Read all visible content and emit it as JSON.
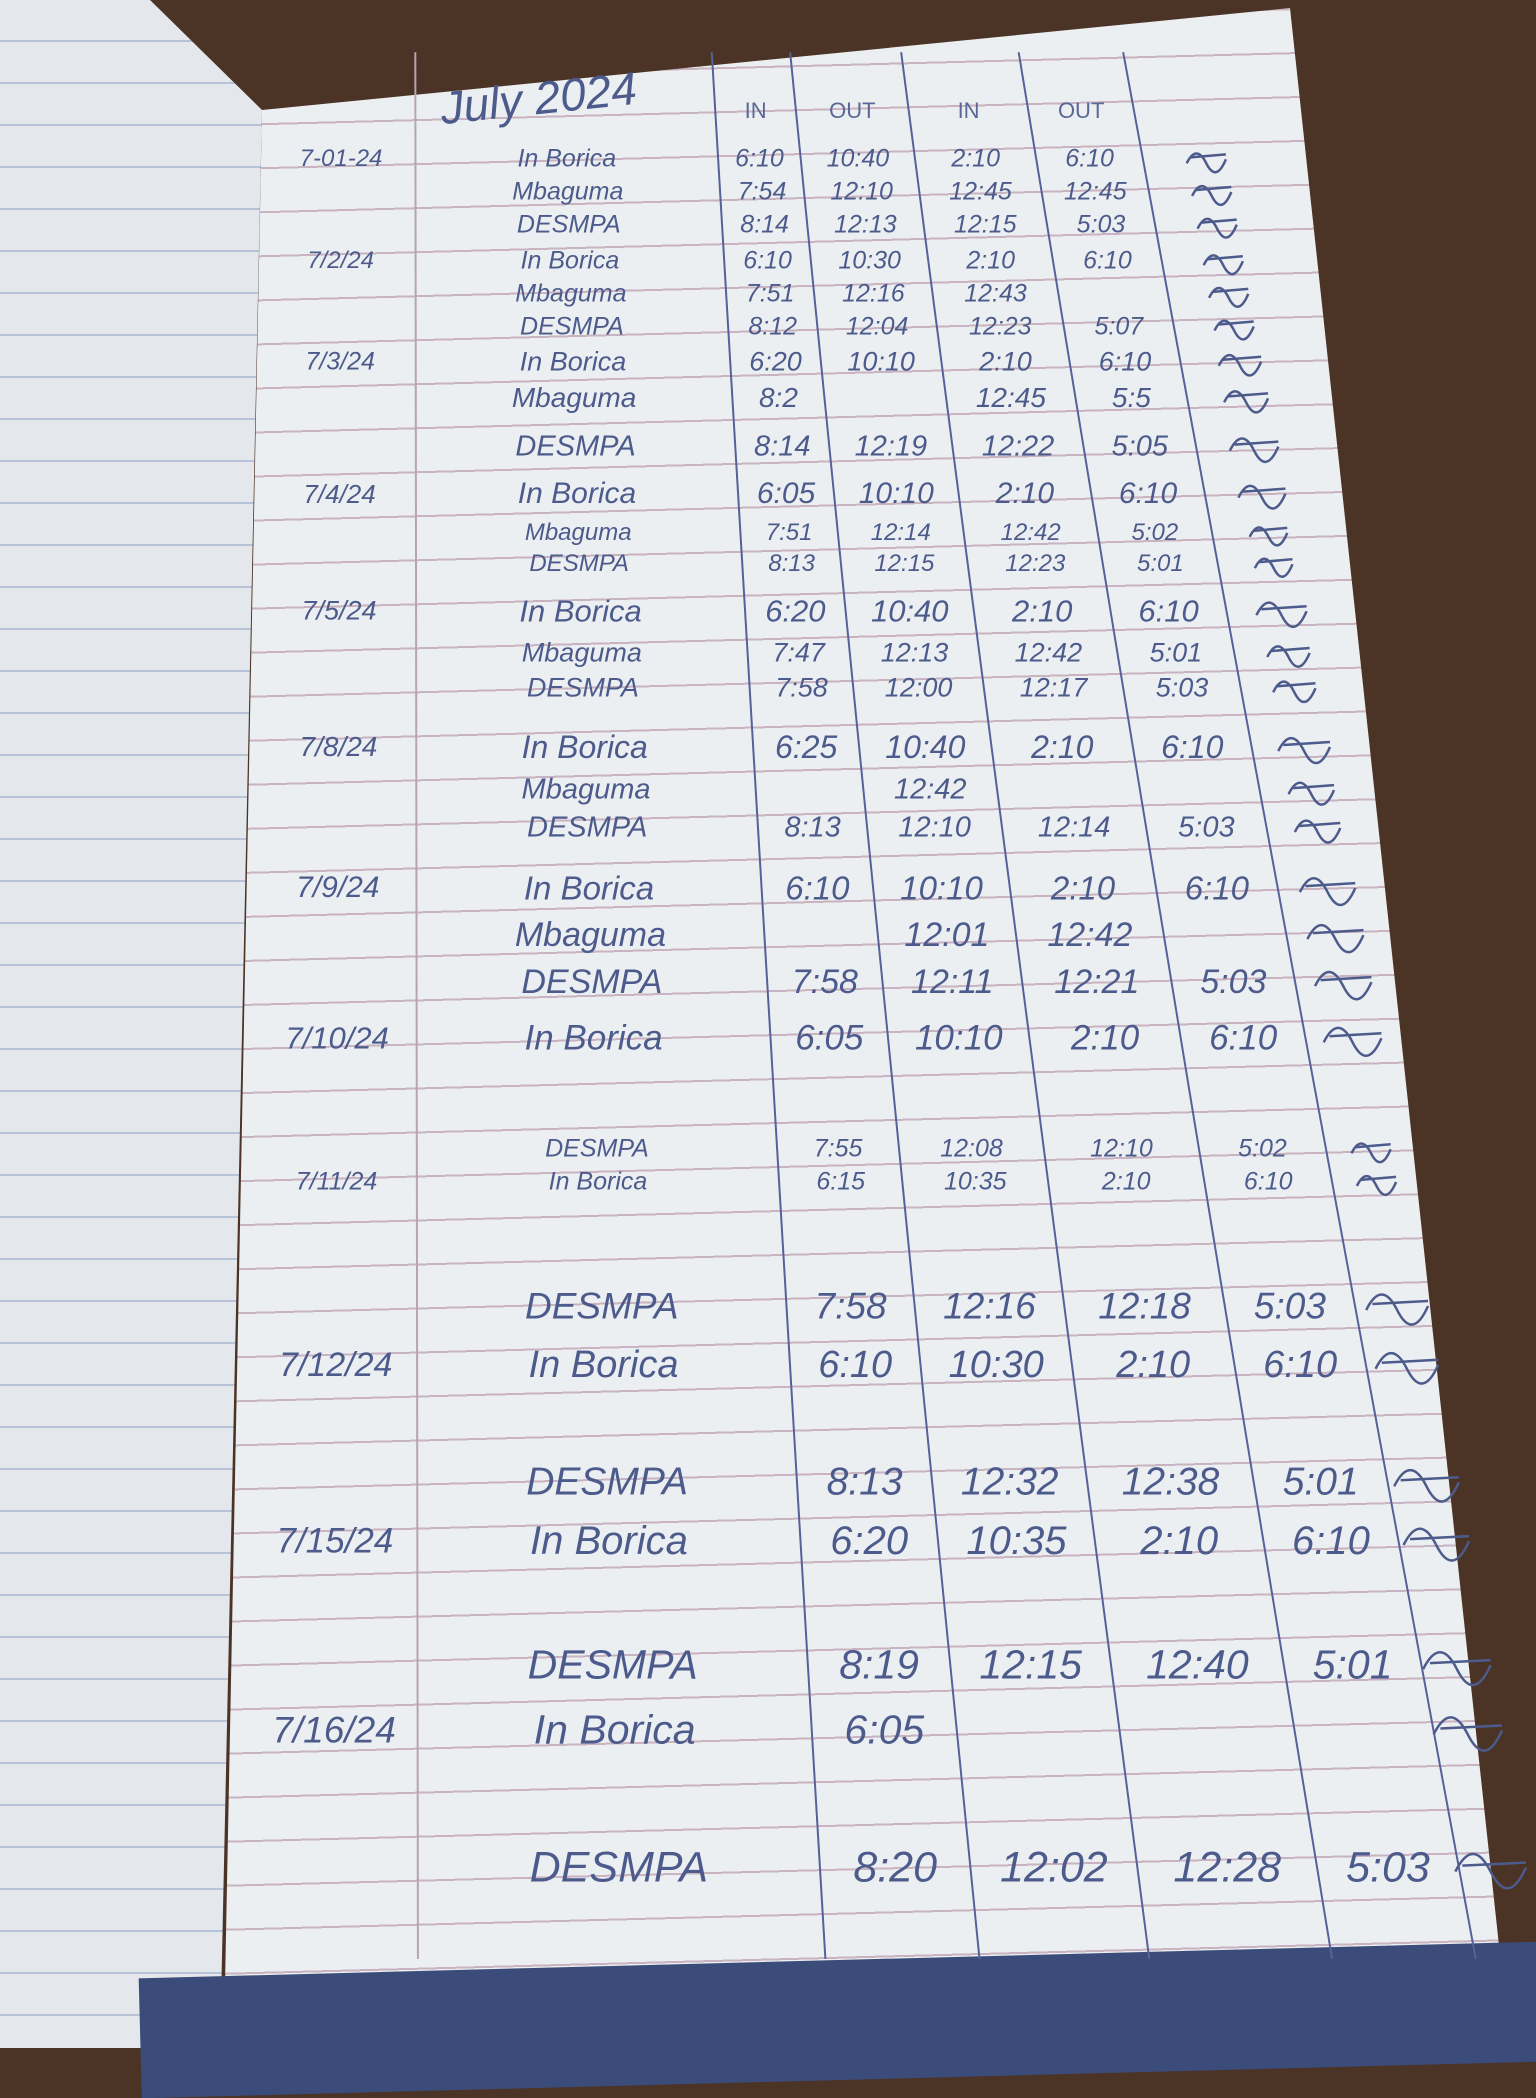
{
  "page": {
    "title": "July 2024",
    "headers": [
      "IN",
      "OUT",
      "IN",
      "OUT"
    ],
    "ink_color": "#4c5b8c",
    "rows": [
      {
        "date": "7-01-24",
        "name": "In Borica",
        "in1": "6:10",
        "out1": "10:40",
        "in2": "2:10",
        "out2": "6:10"
      },
      {
        "date": "",
        "name": "Mbaguma",
        "in1": "7:54",
        "out1": "12:10",
        "in2": "12:45",
        "out2": "12:45"
      },
      {
        "date": "",
        "name": "DESMPA",
        "in1": "8:14",
        "out1": "12:13",
        "in2": "12:15",
        "out2": "5:03"
      },
      {
        "date": "7/2/24",
        "name": "In Borica",
        "in1": "6:10",
        "out1": "10:30",
        "in2": "2:10",
        "out2": "6:10"
      },
      {
        "date": "",
        "name": "Mbaguma",
        "in1": "7:51",
        "out1": "12:16",
        "in2": "12:43",
        "out2": ""
      },
      {
        "date": "",
        "name": "DESMPA",
        "in1": "8:12",
        "out1": "12:04",
        "in2": "12:23",
        "out2": "5:07"
      },
      {
        "date": "7/3/24",
        "name": "In Borica",
        "in1": "6:20",
        "out1": "10:10",
        "in2": "2:10",
        "out2": "6:10"
      },
      {
        "date": "",
        "name": "Mbaguma",
        "in1": "8:2",
        "out1": "",
        "in2": "12:45",
        "out2": "5:5"
      },
      {
        "date": "",
        "name": "DESMPA",
        "in1": "8:14",
        "out1": "12:19",
        "in2": "12:22",
        "out2": "5:05"
      },
      {
        "date": "7/4/24",
        "name": "In Borica",
        "in1": "6:05",
        "out1": "10:10",
        "in2": "2:10",
        "out2": "6:10"
      },
      {
        "date": "",
        "name": "Mbaguma",
        "in1": "7:51",
        "out1": "12:14",
        "in2": "12:42",
        "out2": "5:02"
      },
      {
        "date": "",
        "name": "DESMPA",
        "in1": "8:13",
        "out1": "12:15",
        "in2": "12:23",
        "out2": "5:01"
      },
      {
        "date": "7/5/24",
        "name": "In Borica",
        "in1": "6:20",
        "out1": "10:40",
        "in2": "2:10",
        "out2": "6:10"
      },
      {
        "date": "",
        "name": "Mbaguma",
        "in1": "7:47",
        "out1": "12:13",
        "in2": "12:42",
        "out2": "5:01"
      },
      {
        "date": "",
        "name": "DESMPA",
        "in1": "7:58",
        "out1": "12:00",
        "in2": "12:17",
        "out2": "5:03"
      },
      {
        "date": "7/8/24",
        "name": "In Borica",
        "in1": "6:25",
        "out1": "10:40",
        "in2": "2:10",
        "out2": "6:10"
      },
      {
        "date": "",
        "name": "Mbaguma",
        "in1": "",
        "out1": "12:42",
        "in2": "",
        "out2": ""
      },
      {
        "date": "",
        "name": "DESMPA",
        "in1": "8:13",
        "out1": "12:10",
        "in2": "12:14",
        "out2": "5:03"
      },
      {
        "date": "7/9/24",
        "name": "In Borica",
        "in1": "6:10",
        "out1": "10:10",
        "in2": "2:10",
        "out2": "6:10"
      },
      {
        "date": "",
        "name": "Mbaguma",
        "in1": "",
        "out1": "12:01",
        "in2": "12:42",
        "out2": ""
      },
      {
        "date": "",
        "name": "DESMPA",
        "in1": "7:58",
        "out1": "12:11",
        "in2": "12:21",
        "out2": "5:03"
      },
      {
        "date": "7/10/24",
        "name": "In Borica",
        "in1": "6:05",
        "out1": "10:10",
        "in2": "2:10",
        "out2": "6:10"
      },
      {
        "date": "",
        "name": "DESMPA",
        "in1": "7:55",
        "out1": "12:08",
        "in2": "12:10",
        "out2": "5:02"
      },
      {
        "date": "7/11/24",
        "name": "In Borica",
        "in1": "6:15",
        "out1": "10:35",
        "in2": "2:10",
        "out2": "6:10"
      },
      {
        "date": "",
        "name": "DESMPA",
        "in1": "7:58",
        "out1": "12:16",
        "in2": "12:18",
        "out2": "5:03"
      },
      {
        "date": "7/12/24",
        "name": "In Borica",
        "in1": "6:10",
        "out1": "10:30",
        "in2": "2:10",
        "out2": "6:10"
      },
      {
        "date": "",
        "name": "DESMPA",
        "in1": "8:13",
        "out1": "12:32",
        "in2": "12:38",
        "out2": "5:01"
      },
      {
        "date": "7/15/24",
        "name": "In Borica",
        "in1": "6:20",
        "out1": "10:35",
        "in2": "2:10",
        "out2": "6:10"
      },
      {
        "date": "",
        "name": "DESMPA",
        "in1": "8:19",
        "out1": "12:15",
        "in2": "12:40",
        "out2": "5:01"
      },
      {
        "date": "7/16/24",
        "name": "In Borica",
        "in1": "6:05",
        "out1": "",
        "in2": "",
        "out2": ""
      },
      {
        "date": "",
        "name": "DESMPA",
        "in1": "8:20",
        "out1": "12:02",
        "in2": "12:28",
        "out2": "5:03"
      }
    ]
  }
}
